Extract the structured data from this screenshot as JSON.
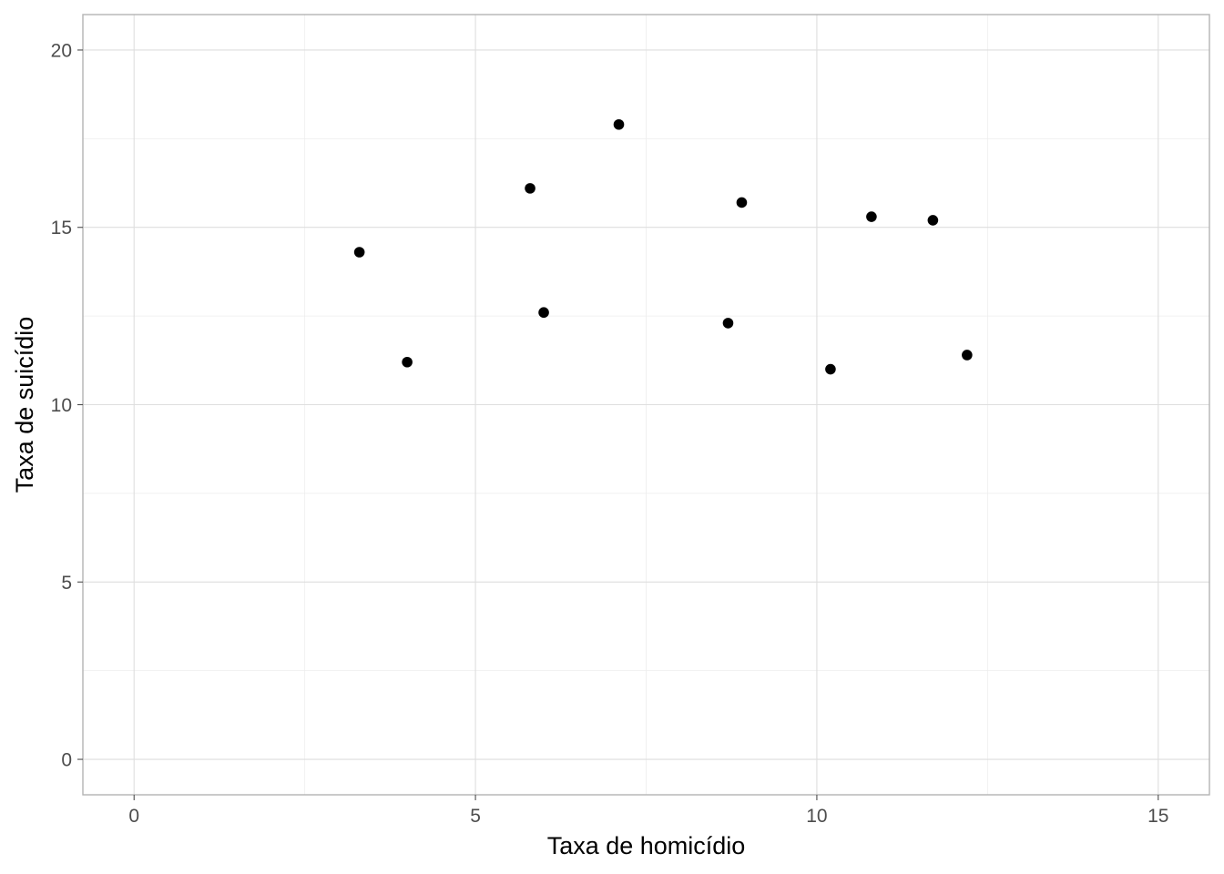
{
  "chart_data": {
    "type": "scatter",
    "title": "",
    "xlabel": "Taxa de homicídio",
    "ylabel": "Taxa de suicídio",
    "xlim": [
      -0.75,
      15.75
    ],
    "ylim": [
      -1,
      21
    ],
    "x_ticks": [
      0,
      5,
      10,
      15
    ],
    "y_ticks": [
      0,
      5,
      10,
      15,
      20
    ],
    "x_tick_labels": [
      "0",
      "5",
      "10",
      "15"
    ],
    "y_tick_labels": [
      "0",
      "5",
      "10",
      "15",
      "20"
    ],
    "grid": true,
    "legend": "none",
    "point_color": "#000000",
    "points": [
      {
        "x": 3.3,
        "y": 14.3
      },
      {
        "x": 4.0,
        "y": 11.2
      },
      {
        "x": 5.8,
        "y": 16.1
      },
      {
        "x": 6.0,
        "y": 12.6
      },
      {
        "x": 7.1,
        "y": 17.9
      },
      {
        "x": 8.7,
        "y": 12.3
      },
      {
        "x": 8.9,
        "y": 15.7
      },
      {
        "x": 10.2,
        "y": 11.0
      },
      {
        "x": 10.8,
        "y": 15.3
      },
      {
        "x": 11.7,
        "y": 15.2
      },
      {
        "x": 12.2,
        "y": 11.4
      }
    ]
  }
}
